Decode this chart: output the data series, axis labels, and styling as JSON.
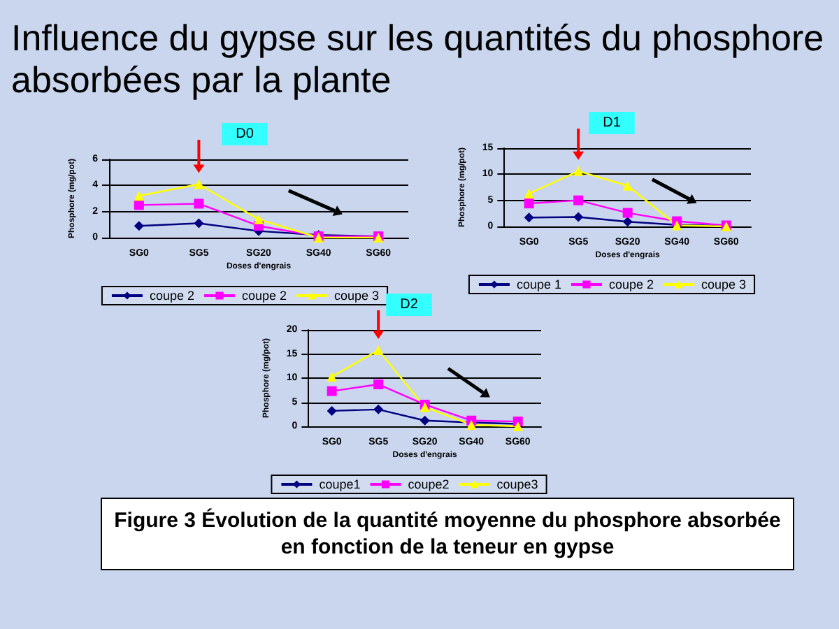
{
  "chart_data": [
    {
      "type": "line",
      "title": "D0",
      "xlabel": "Doses d'engrais",
      "ylabel": "Phosphore (mg/pot)",
      "categories": [
        "SG0",
        "SG5",
        "SG20",
        "SG40",
        "SG60"
      ],
      "ylim": [
        0,
        6
      ],
      "yticks": [
        0,
        2,
        4,
        6
      ],
      "grid": "y",
      "legend": "bottom",
      "series": [
        {
          "name": "coupe 2",
          "color": "#000080",
          "marker": "diamond",
          "values": [
            0.9,
            1.1,
            0.5,
            0.2,
            0.1
          ]
        },
        {
          "name": "coupe 2",
          "color": "#ff00ff",
          "marker": "square",
          "values": [
            2.5,
            2.6,
            0.9,
            0.1,
            0.1
          ]
        },
        {
          "name": "coupe 3",
          "color": "#ffff00",
          "marker": "triangle",
          "values": [
            3.2,
            4.1,
            1.4,
            0,
            0
          ]
        }
      ]
    },
    {
      "type": "line",
      "title": "D1",
      "xlabel": "Doses d'engrais",
      "ylabel": "Phosphore (mg/pot)",
      "categories": [
        "SG0",
        "SG5",
        "SG20",
        "SG40",
        "SG60"
      ],
      "ylim": [
        0,
        15
      ],
      "yticks": [
        0,
        5,
        10,
        15
      ],
      "grid": "y",
      "legend": "bottom",
      "series": [
        {
          "name": "coupe 1",
          "color": "#000080",
          "marker": "diamond",
          "values": [
            1.7,
            1.8,
            0.9,
            0.3,
            0.1
          ]
        },
        {
          "name": "coupe 2",
          "color": "#ff00ff",
          "marker": "square",
          "values": [
            4.4,
            5,
            2.6,
            1,
            0.2
          ]
        },
        {
          "name": "coupe 3",
          "color": "#ffff00",
          "marker": "triangle",
          "values": [
            6.3,
            10.6,
            7.8,
            0.2,
            0
          ]
        }
      ]
    },
    {
      "type": "line",
      "title": "D2",
      "xlabel": "Doses d'engrais",
      "ylabel": "Phosphore (mg/pot)",
      "categories": [
        "SG0",
        "SG5",
        "SG20",
        "SG40",
        "SG60"
      ],
      "ylim": [
        0,
        20
      ],
      "yticks": [
        0,
        5,
        10,
        15,
        20
      ],
      "grid": "y",
      "legend": "bottom",
      "series": [
        {
          "name": "coupe1",
          "color": "#000080",
          "marker": "diamond",
          "values": [
            3.2,
            3.5,
            1.2,
            0.8,
            0.5
          ]
        },
        {
          "name": "coupe2",
          "color": "#ff00ff",
          "marker": "square",
          "values": [
            7.3,
            8.7,
            4.5,
            1.2,
            1
          ]
        },
        {
          "name": "coupe3",
          "color": "#ffff00",
          "marker": "triangle",
          "values": [
            10.3,
            15.8,
            4,
            0.3,
            0
          ]
        }
      ]
    },
    {
      "type": "other",
      "title": "Influence du gypse sur les quantités du phosphore absorbées par la plante",
      "annotations": [
        "Figure 3 Évolution de la quantité moyenne du phosphore absorbée  en fonction de la teneur en gypse"
      ]
    }
  ]
}
